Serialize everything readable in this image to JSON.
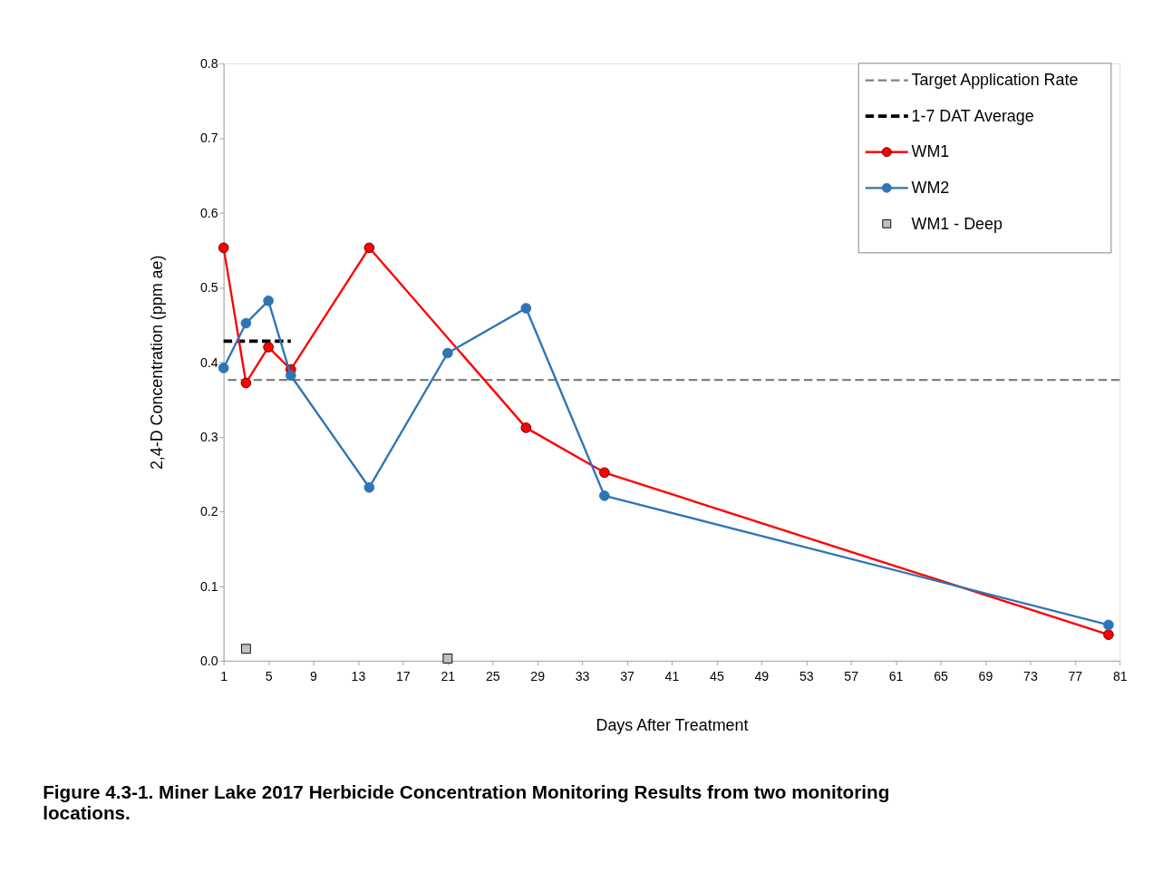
{
  "chart_data": {
    "type": "line",
    "title": "Figure 4.3-1.  Miner Lake 2017 Herbicide Concentration Monitoring Results from two monitoring locations.",
    "xlabel": "Days After Treatment",
    "ylabel": "2,4-D Concentration  (ppm ae)",
    "xlim": [
      1,
      81
    ],
    "xticks": [
      1,
      5,
      9,
      13,
      17,
      21,
      25,
      29,
      33,
      37,
      41,
      45,
      49,
      53,
      57,
      61,
      65,
      69,
      73,
      77,
      81
    ],
    "ylim": [
      0,
      0.8
    ],
    "yticks": [
      {
        "value": 0,
        "label": "0.0"
      },
      {
        "value": 0.1,
        "label": "0.1"
      },
      {
        "value": 0.2,
        "label": "0.2"
      },
      {
        "value": 0.3,
        "label": "0.3"
      },
      {
        "value": 0.4,
        "label": "0.4"
      },
      {
        "value": 0.5,
        "label": "0.5"
      },
      {
        "value": 0.6,
        "label": "0.6"
      },
      {
        "value": 0.7,
        "label": "0.7"
      },
      {
        "value": 0.8,
        "label": "0.8"
      }
    ],
    "grid": false,
    "legend": "top right",
    "marker": "circle",
    "ref_lines": [
      {
        "axis": "y",
        "value": 0.376,
        "label": "Target Application Rate",
        "color": "#808080",
        "line_style": "dashed"
      }
    ],
    "series": [
      {
        "name": "1-7 DAT Average",
        "type": "line",
        "color": "#000000",
        "line_style": "dashed",
        "marker": "none",
        "x": [
          1,
          7
        ],
        "values": [
          0.428,
          0.428
        ]
      },
      {
        "name": "WM1",
        "color": "#ff0000",
        "x": [
          1,
          3,
          5,
          7,
          14,
          28,
          35,
          80
        ],
        "values": [
          0.553,
          0.372,
          0.42,
          0.39,
          0.553,
          0.312,
          0.252,
          0.035
        ]
      },
      {
        "name": "WM2",
        "color": "#2e75b6",
        "x": [
          1,
          3,
          5,
          7,
          14,
          21,
          28,
          35,
          80
        ],
        "values": [
          0.392,
          0.452,
          0.482,
          0.382,
          0.232,
          0.412,
          0.472,
          0.221,
          0.048
        ]
      },
      {
        "name": "WM1 - Deep",
        "type": "scatter",
        "color": "#c0c0c0",
        "marker": "square",
        "x": [
          3,
          21
        ],
        "values": [
          0.016,
          0.003
        ]
      }
    ]
  }
}
